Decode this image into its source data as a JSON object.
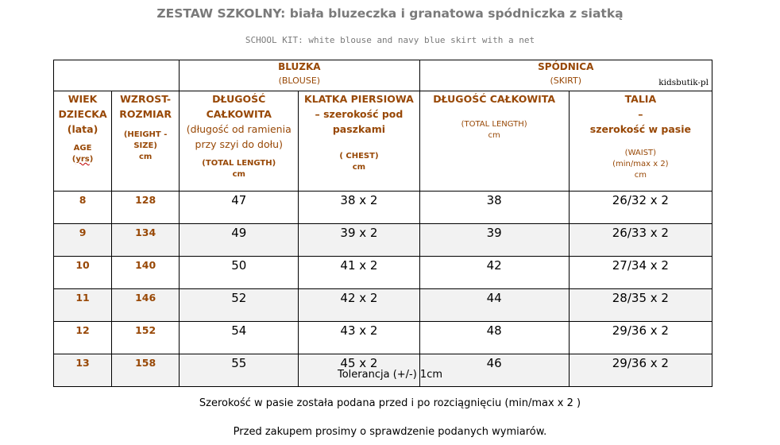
{
  "title": "ZESTAW SZKOLNY: biała bluzeczka i granatowa spódniczka z siatką",
  "subtitle": "SCHOOL KIT: white blouse and navy blue skirt with a net",
  "brand": "kidsbutik-pl",
  "groups": {
    "blouse": {
      "label": "BLUZKA",
      "sub": "(BLOUSE)"
    },
    "skirt": {
      "label": "SPÓDNICA",
      "sub": "(SKIRT)"
    }
  },
  "columns": {
    "age": {
      "l1": "WIEK",
      "l2": "DZIECKA",
      "l3": "(lata)",
      "en1": "AGE",
      "en2": "yrs"
    },
    "height": {
      "l1": "WZROST-",
      "l2": "ROZMIAR",
      "en1": "(HEIGHT -",
      "en2": "SIZE)",
      "unit": "cm"
    },
    "blouse_length": {
      "l1": "DŁUGOŚĆ",
      "l2": "CAŁKOWITA",
      "d1": "(długość od ramienia",
      "d2": "przy szyi do dołu)",
      "en": "(TOTAL LENGTH)",
      "unit": "cm"
    },
    "chest": {
      "l1": "KLATKA PIERSIOWA",
      "l2": "– szerokość pod",
      "l3": "paszkami",
      "en": "( CHEST)",
      "unit": "cm"
    },
    "skirt_length": {
      "l1": "DŁUGOŚĆ CAŁKOWITA",
      "en": "(TOTAL LENGTH)",
      "unit": "cm"
    },
    "waist": {
      "l1": "TALIA",
      "l2": "–",
      "l3": "szerokość w pasie",
      "en": "(WAIST)",
      "en2": "(min/max x 2)",
      "unit": "cm"
    }
  },
  "rows": [
    {
      "age": "8",
      "height": "128",
      "blouse_length": "47",
      "chest": "38 x 2",
      "skirt_length": "38",
      "waist": "26/32 x 2"
    },
    {
      "age": "9",
      "height": "134",
      "blouse_length": "49",
      "chest": "39 x 2",
      "skirt_length": "39",
      "waist": "26/33 x 2"
    },
    {
      "age": "10",
      "height": "140",
      "blouse_length": "50",
      "chest": "41 x 2",
      "skirt_length": "42",
      "waist": "27/34 x 2"
    },
    {
      "age": "11",
      "height": "146",
      "blouse_length": "52",
      "chest": "42 x 2",
      "skirt_length": "44",
      "waist": "28/35 x 2"
    },
    {
      "age": "12",
      "height": "152",
      "blouse_length": "54",
      "chest": "43 x 2",
      "skirt_length": "48",
      "waist": "29/36 x 2"
    },
    {
      "age": "13",
      "height": "158",
      "blouse_length": "55",
      "chest": "45 x 2",
      "skirt_length": "46",
      "waist": "29/36 x 2"
    }
  ],
  "notes": {
    "tolerance": "Tolerancja (+/-) 1cm",
    "waist_note": "Szerokość w pasie została podana przed i po rozciągnięciu (min/max x 2 )",
    "check_note": "Przed zakupem prosimy o sprawdzenie podanych wymiarów."
  },
  "colors": {
    "header_text": "#984806",
    "title_text": "#7a7a7a",
    "alt_row": "#f2f2f2"
  }
}
